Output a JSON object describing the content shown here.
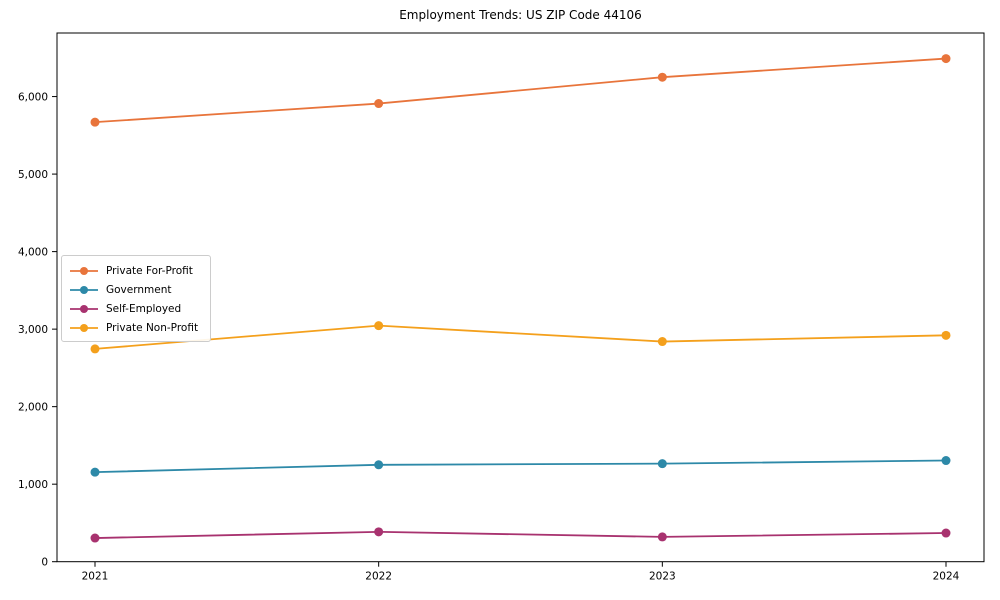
{
  "chart_data": {
    "type": "line",
    "title": "Employment Trends: US ZIP Code 44106",
    "x": [
      "2021",
      "2022",
      "2023",
      "2024"
    ],
    "xtick_labels": [
      "2021",
      "2022",
      "2023",
      "2024"
    ],
    "yticks": [
      0,
      1000,
      2000,
      3000,
      4000,
      5000,
      6000
    ],
    "ytick_labels": [
      "0",
      "1,000",
      "2,000",
      "3,000",
      "4,000",
      "5,000",
      "6,000"
    ],
    "ylim": [
      0,
      6820
    ],
    "xlabel": "",
    "ylabel": "",
    "grid": false,
    "marker": "circle",
    "legend_position": "center left",
    "series": [
      {
        "name": "Private For-Profit",
        "color": "#e8743b",
        "values": [
          5670,
          5910,
          6250,
          6490
        ]
      },
      {
        "name": "Government",
        "color": "#2d89a8",
        "values": [
          1155,
          1250,
          1265,
          1305
        ]
      },
      {
        "name": "Self-Employed",
        "color": "#a8326f",
        "values": [
          305,
          385,
          320,
          370
        ]
      },
      {
        "name": "Private Non-Profit",
        "color": "#f4a01c",
        "values": [
          2745,
          3045,
          2840,
          2920
        ]
      }
    ],
    "axis_color": "#000000"
  }
}
